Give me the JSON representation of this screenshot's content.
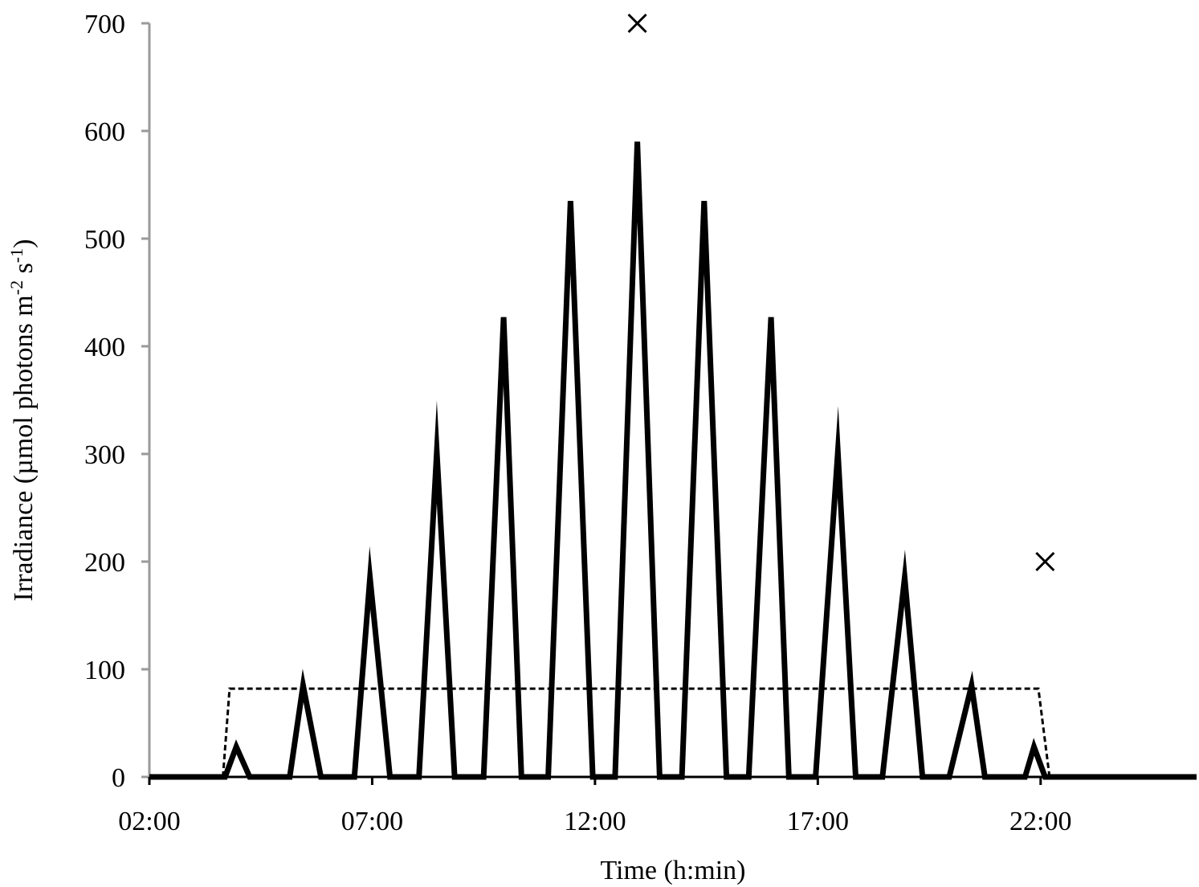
{
  "chart_data": {
    "type": "line",
    "title": "",
    "xlabel": "Time (h:min)",
    "ylabel": {
      "prefix": "Irradiance (µmol photons m",
      "exp1": "-2",
      "mid": " s",
      "exp2": "-1",
      "suffix": ")"
    },
    "x_unit": "hours",
    "xlim": [
      2,
      25.5
    ],
    "ylim": [
      0,
      700
    ],
    "x_ticks": [
      {
        "value": 2,
        "label": "02:00"
      },
      {
        "value": 7,
        "label": "07:00"
      },
      {
        "value": 12,
        "label": "12:00"
      },
      {
        "value": 17,
        "label": "17:00"
      },
      {
        "value": 22,
        "label": "22:00"
      }
    ],
    "y_ticks": [
      {
        "value": 0,
        "label": "0"
      },
      {
        "value": 100,
        "label": "100"
      },
      {
        "value": 200,
        "label": "200"
      },
      {
        "value": 300,
        "label": "300"
      },
      {
        "value": 400,
        "label": "400"
      },
      {
        "value": 500,
        "label": "500"
      },
      {
        "value": 600,
        "label": "600"
      },
      {
        "value": 700,
        "label": "700"
      }
    ],
    "grid": false,
    "legend": "none",
    "series": [
      {
        "style": "solid",
        "color": "#000000",
        "pulses": [
          {
            "start": 3.7,
            "peak_time": 3.95,
            "end": 4.25,
            "peak": 28
          },
          {
            "start": 5.15,
            "peak_time": 5.45,
            "end": 5.85,
            "peak": 85
          },
          {
            "start": 6.6,
            "peak_time": 6.95,
            "end": 7.4,
            "peak": 185
          },
          {
            "start": 8.05,
            "peak_time": 8.45,
            "end": 8.85,
            "peak": 302
          },
          {
            "start": 9.5,
            "peak_time": 9.95,
            "end": 10.35,
            "peak": 427
          },
          {
            "start": 10.95,
            "peak_time": 11.45,
            "end": 11.95,
            "peak": 535
          },
          {
            "start": 12.45,
            "peak_time": 12.95,
            "end": 13.45,
            "peak": 590
          },
          {
            "start": 13.95,
            "peak_time": 14.45,
            "end": 14.95,
            "peak": 535
          },
          {
            "start": 15.45,
            "peak_time": 15.95,
            "end": 16.35,
            "peak": 427
          },
          {
            "start": 16.95,
            "peak_time": 17.45,
            "end": 17.85,
            "peak": 302
          },
          {
            "start": 18.45,
            "peak_time": 18.95,
            "end": 19.35,
            "peak": 185
          },
          {
            "start": 19.95,
            "peak_time": 20.45,
            "end": 20.75,
            "peak": 85
          },
          {
            "start": 21.65,
            "peak_time": 21.85,
            "end": 22.1,
            "peak": 28
          }
        ]
      },
      {
        "style": "dashed",
        "color": "#000000",
        "points": [
          [
            3.65,
            0
          ],
          [
            3.8,
            82
          ],
          [
            21.95,
            82
          ],
          [
            22.2,
            0
          ]
        ]
      }
    ],
    "markers": [
      {
        "symbol": "x",
        "x": 12.95,
        "y": 700
      },
      {
        "symbol": "x",
        "x": 22.1,
        "y": 200
      }
    ]
  }
}
